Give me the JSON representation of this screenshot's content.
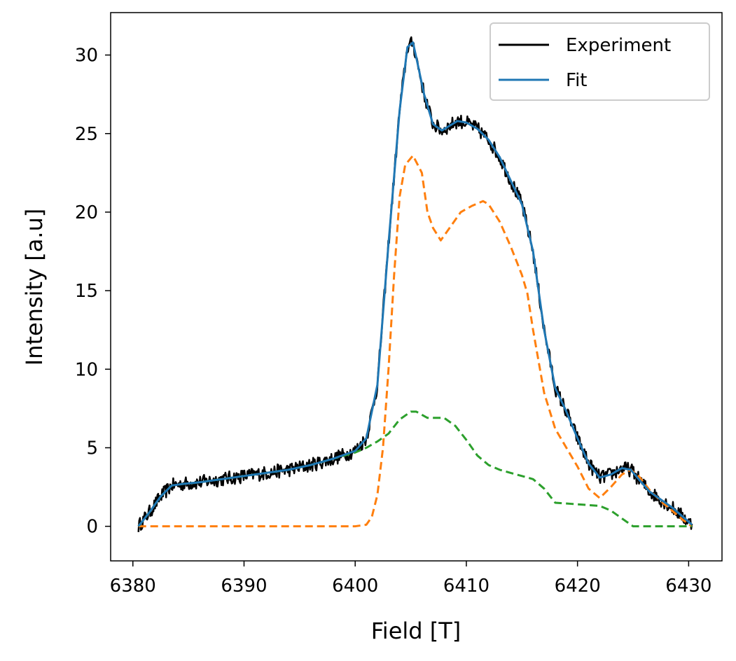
{
  "chart_data": {
    "type": "line",
    "title": "",
    "xlabel": "Field [T]",
    "ylabel": "Intensity [a.u]",
    "xlim": [
      6378,
      6433
    ],
    "ylim": [
      -2.2,
      32.7
    ],
    "xticks": [
      6380,
      6390,
      6400,
      6410,
      6420,
      6430
    ],
    "yticks": [
      0,
      5,
      10,
      15,
      20,
      25,
      30
    ],
    "legend": {
      "placement": "top-right",
      "entries": [
        "Experiment",
        "Fit"
      ]
    },
    "grid": false,
    "series": [
      {
        "name": "Experiment",
        "color": "#000000",
        "style": "solid",
        "noisy": true,
        "x": [
          6380.5,
          6381.5,
          6382.5,
          6383.5,
          6384.5,
          6386,
          6388,
          6390,
          6392,
          6394,
          6396,
          6398,
          6400,
          6401,
          6402,
          6403,
          6404,
          6404.7,
          6405.2,
          6405.6,
          6406.2,
          6407,
          6407.8,
          6408.5,
          6409.2,
          6410,
          6411,
          6412,
          6413,
          6414,
          6415,
          6416,
          6417,
          6418,
          6419,
          6420,
          6421,
          6422,
          6423,
          6424,
          6424.8,
          6425.5,
          6426.5,
          6427.5,
          6428.5,
          6429.5,
          6430.3
        ],
        "y": [
          0.0,
          0.9,
          1.9,
          2.6,
          2.7,
          2.8,
          3.0,
          3.2,
          3.4,
          3.6,
          3.9,
          4.3,
          4.8,
          5.6,
          9.0,
          18.0,
          26.5,
          30.5,
          30.8,
          29.5,
          27.5,
          25.6,
          25.2,
          25.5,
          25.8,
          25.7,
          25.3,
          24.6,
          23.5,
          22.0,
          20.5,
          17.5,
          12.5,
          8.8,
          7.3,
          5.6,
          4.0,
          3.1,
          3.3,
          3.7,
          3.6,
          3.0,
          2.2,
          1.7,
          1.2,
          0.6,
          0.1
        ]
      },
      {
        "name": "Fit",
        "color": "#1f77b4",
        "style": "solid",
        "x": [
          6380.5,
          6381.5,
          6382.5,
          6383.5,
          6384.5,
          6386,
          6388,
          6390,
          6392,
          6394,
          6396,
          6398,
          6400,
          6401,
          6402,
          6403,
          6404,
          6404.7,
          6405.2,
          6405.6,
          6406.2,
          6407,
          6407.8,
          6408.5,
          6409.2,
          6410,
          6411,
          6412,
          6413,
          6414,
          6415,
          6416,
          6417,
          6418,
          6419,
          6420,
          6421,
          6422,
          6423,
          6424,
          6424.8,
          6425.5,
          6426.5,
          6427.5,
          6428.5,
          6429.5,
          6430.3
        ],
        "y": [
          0.0,
          0.9,
          1.9,
          2.6,
          2.7,
          2.8,
          3.0,
          3.2,
          3.4,
          3.6,
          3.9,
          4.3,
          4.8,
          5.6,
          9.0,
          18.0,
          26.5,
          30.5,
          30.8,
          29.5,
          27.5,
          25.6,
          25.2,
          25.5,
          25.8,
          25.7,
          25.3,
          24.6,
          23.5,
          22.0,
          20.5,
          17.5,
          12.5,
          8.8,
          7.3,
          5.6,
          4.0,
          3.1,
          3.3,
          3.7,
          3.6,
          3.0,
          2.2,
          1.7,
          1.2,
          0.6,
          0.1
        ]
      },
      {
        "color": "#ff7f0e",
        "style": "dashed",
        "x": [
          6380.5,
          6390,
          6400,
          6401,
          6401.5,
          6402,
          6402.5,
          6403,
          6403.5,
          6404,
          6404.5,
          6405.2,
          6406,
          6406.5,
          6407,
          6407.7,
          6408.5,
          6409.5,
          6410.5,
          6411.5,
          6412,
          6413,
          6414,
          6415,
          6415.5,
          6416,
          6417,
          6418,
          6419,
          6420,
          6421,
          6422,
          6423,
          6424,
          6424.8,
          6425.5,
          6426.5,
          6427.5,
          6428.5,
          6429.5,
          6430.3
        ],
        "y": [
          0.0,
          0.0,
          0.0,
          0.1,
          0.6,
          2.0,
          5.0,
          10.0,
          16.0,
          21.0,
          23.0,
          23.6,
          22.5,
          20.0,
          19.0,
          18.2,
          19.0,
          20.0,
          20.4,
          20.7,
          20.5,
          19.4,
          17.8,
          16.0,
          14.8,
          12.5,
          8.5,
          6.2,
          5.0,
          3.8,
          2.4,
          1.8,
          2.5,
          3.3,
          3.6,
          3.2,
          2.3,
          1.6,
          1.0,
          0.4,
          0.0
        ]
      },
      {
        "color": "#2ca02c",
        "style": "dashed",
        "x": [
          6380.5,
          6381.5,
          6382.5,
          6383.5,
          6384.5,
          6386,
          6388,
          6390,
          6392,
          6394,
          6396,
          6398,
          6400,
          6401,
          6402,
          6403,
          6404,
          6405,
          6405.5,
          6406.5,
          6407,
          6408,
          6409,
          6410,
          6411,
          6412,
          6413,
          6414,
          6415,
          6416,
          6417,
          6418,
          6420,
          6422,
          6423,
          6424,
          6425,
          6427,
          6430.3
        ],
        "y": [
          0.0,
          0.9,
          1.9,
          2.6,
          2.7,
          2.8,
          3.0,
          3.2,
          3.4,
          3.6,
          3.9,
          4.3,
          4.7,
          5.0,
          5.4,
          5.9,
          6.8,
          7.3,
          7.3,
          6.9,
          6.9,
          6.9,
          6.4,
          5.5,
          4.5,
          3.9,
          3.6,
          3.4,
          3.2,
          3.0,
          2.4,
          1.5,
          1.4,
          1.3,
          1.0,
          0.5,
          0.0,
          0.0,
          0.0
        ]
      }
    ]
  }
}
